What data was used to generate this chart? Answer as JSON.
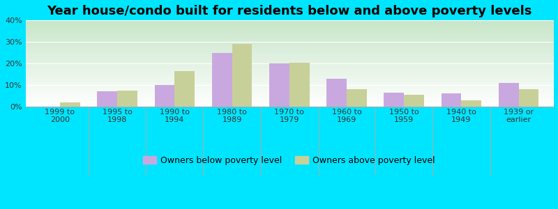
{
  "title": "Year house/condo built for residents below and above poverty levels",
  "categories": [
    "1999 to\n2000",
    "1995 to\n1998",
    "1990 to\n1994",
    "1980 to\n1989",
    "1970 to\n1979",
    "1960 to\n1969",
    "1950 to\n1959",
    "1940 to\n1949",
    "1939 or\nearlier"
  ],
  "below_poverty": [
    0,
    7,
    10,
    25,
    20,
    13,
    6.5,
    6,
    11
  ],
  "above_poverty": [
    2,
    7.5,
    16.5,
    29,
    20.5,
    8,
    5.5,
    3,
    8
  ],
  "below_color": "#c9a8e0",
  "above_color": "#c8d09a",
  "ylim": [
    0,
    40
  ],
  "yticks": [
    0,
    10,
    20,
    30,
    40
  ],
  "ytick_labels": [
    "0%",
    "10%",
    "20%",
    "30%",
    "40%"
  ],
  "bg_color_bottom": "#ffffff",
  "bg_color_top": "#c8e6c9",
  "outer_bg": "#00e5ff",
  "legend_below": "Owners below poverty level",
  "legend_above": "Owners above poverty level",
  "bar_width": 0.35,
  "title_fontsize": 13,
  "tick_fontsize": 8,
  "legend_fontsize": 9
}
